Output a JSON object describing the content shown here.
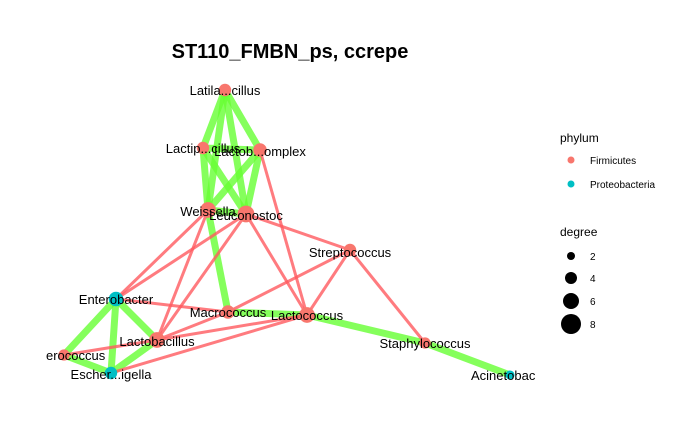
{
  "title": "ST110_FMBN_ps, ccrepe",
  "colors": {
    "firmicutes": "#F8766D",
    "proteobacteria": "#00BFC4",
    "positive_edge": "#66FF33",
    "negative_edge": "#FF5A5F"
  },
  "nodes": [
    {
      "id": "latil",
      "label": "Latila...cillus",
      "phylum": "Firmicutes"
    },
    {
      "id": "lactip",
      "label": "Lactip...cillus",
      "phylum": "Firmicutes"
    },
    {
      "id": "lactob_c",
      "label": "Lactob...omplex",
      "phylum": "Firmicutes"
    },
    {
      "id": "weis",
      "label": "Weissella",
      "phylum": "Firmicutes"
    },
    {
      "id": "leuc",
      "label": "Leuconostoc",
      "phylum": "Firmicutes"
    },
    {
      "id": "strep",
      "label": "Streptococcus",
      "phylum": "Firmicutes"
    },
    {
      "id": "entb",
      "label": "Enterobacter",
      "phylum": "Proteobacteria"
    },
    {
      "id": "macro",
      "label": "Macrococcus",
      "phylum": "Firmicutes"
    },
    {
      "id": "lacto",
      "label": "Lactococcus",
      "phylum": "Firmicutes"
    },
    {
      "id": "staph",
      "label": "Staphylococcus",
      "phylum": "Firmicutes"
    },
    {
      "id": "lactobac",
      "label": "Lactobacillus",
      "phylum": "Firmicutes"
    },
    {
      "id": "eroc",
      "label": "erococcus",
      "phylum": "Firmicutes"
    },
    {
      "id": "esch",
      "label": "Escher...igella",
      "phylum": "Proteobacteria"
    },
    {
      "id": "acin",
      "label": "Acinetobac",
      "phylum": "Proteobacteria"
    }
  ],
  "edges": [
    {
      "source": "latil",
      "target": "lactip",
      "sign": "positive"
    },
    {
      "source": "latil",
      "target": "lactob_c",
      "sign": "positive"
    },
    {
      "source": "latil",
      "target": "weis",
      "sign": "positive"
    },
    {
      "source": "latil",
      "target": "leuc",
      "sign": "positive"
    },
    {
      "source": "lactip",
      "target": "lactob_c",
      "sign": "positive"
    },
    {
      "source": "lactip",
      "target": "weis",
      "sign": "positive"
    },
    {
      "source": "lactip",
      "target": "leuc",
      "sign": "positive"
    },
    {
      "source": "lactob_c",
      "target": "weis",
      "sign": "positive"
    },
    {
      "source": "lactob_c",
      "target": "leuc",
      "sign": "positive"
    },
    {
      "source": "weis",
      "target": "leuc",
      "sign": "positive"
    },
    {
      "source": "weis",
      "target": "macro",
      "sign": "positive"
    },
    {
      "source": "macro",
      "target": "lacto",
      "sign": "positive"
    },
    {
      "source": "lacto",
      "target": "staph",
      "sign": "positive"
    },
    {
      "source": "staph",
      "target": "acin",
      "sign": "positive"
    },
    {
      "source": "entb",
      "target": "eroc",
      "sign": "positive"
    },
    {
      "source": "entb",
      "target": "esch",
      "sign": "positive"
    },
    {
      "source": "entb",
      "target": "lactobac",
      "sign": "positive"
    },
    {
      "source": "eroc",
      "target": "esch",
      "sign": "positive"
    },
    {
      "source": "lactobac",
      "target": "esch",
      "sign": "positive"
    },
    {
      "source": "weis",
      "target": "entb",
      "sign": "negative"
    },
    {
      "source": "leuc",
      "target": "entb",
      "sign": "negative"
    },
    {
      "source": "weis",
      "target": "lactobac",
      "sign": "negative"
    },
    {
      "source": "leuc",
      "target": "lactobac",
      "sign": "negative"
    },
    {
      "source": "leuc",
      "target": "strep",
      "sign": "negative"
    },
    {
      "source": "leuc",
      "target": "lacto",
      "sign": "negative"
    },
    {
      "source": "lactob_c",
      "target": "lacto",
      "sign": "negative"
    },
    {
      "source": "strep",
      "target": "lacto",
      "sign": "negative"
    },
    {
      "source": "strep",
      "target": "macro",
      "sign": "negative"
    },
    {
      "source": "strep",
      "target": "staph",
      "sign": "negative"
    },
    {
      "source": "lactobac",
      "target": "lacto",
      "sign": "negative"
    },
    {
      "source": "lactobac",
      "target": "macro",
      "sign": "negative"
    },
    {
      "source": "eroc",
      "target": "lactobac",
      "sign": "negative"
    },
    {
      "source": "esch",
      "target": "lacto",
      "sign": "negative"
    },
    {
      "source": "entb",
      "target": "macro",
      "sign": "negative"
    }
  ],
  "legend": {
    "phylum_title": "phylum",
    "phylum_items": [
      {
        "label": "Firmicutes",
        "color": "#F8766D"
      },
      {
        "label": "Proteobacteria",
        "color": "#00BFC4"
      }
    ],
    "degree_title": "degree",
    "degree_items": [
      {
        "label": "2",
        "value": 2
      },
      {
        "label": "4",
        "value": 4
      },
      {
        "label": "6",
        "value": 6
      },
      {
        "label": "8",
        "value": 8
      }
    ]
  }
}
